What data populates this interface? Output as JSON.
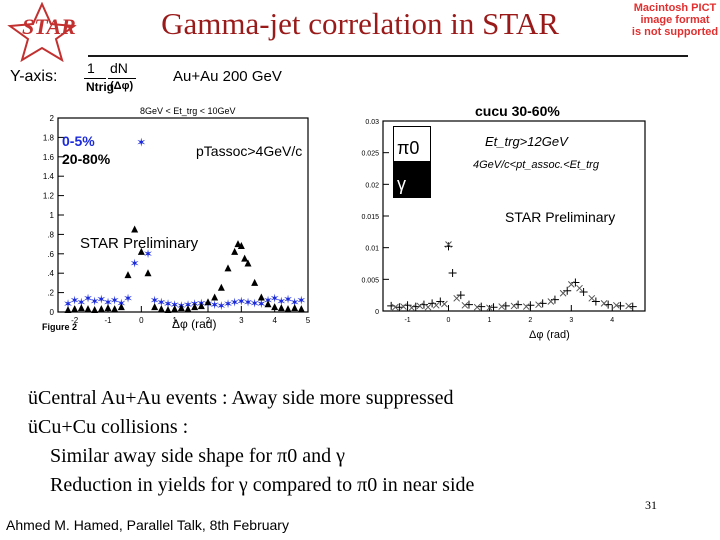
{
  "slide": {
    "title": "Gamma-jet correlation in STAR",
    "logo_text": "STAR",
    "mac_notice": [
      "Macintosh PICT",
      "image format",
      "is not supported"
    ],
    "yaxis_label": "Y-axis:",
    "yaxis_frac_num": "1",
    "yaxis_frac_den": "Ntrig",
    "yaxis_dn": "dN",
    "yaxis_dphi": "(Δφ)",
    "system_label": "Au+Au 200 GeV",
    "bullets": [
      "üCentral Au+Au events : Away side more suppressed",
      "üCu+Cu collisions :",
      "Similar away side shape for π0 and γ",
      "Reduction in yields for γ compared to π0 in near side"
    ],
    "footer": "Ahmed M. Hamed, Parallel Talk, 8th February",
    "page_number": "31"
  },
  "chart_data": [
    {
      "type": "scatter",
      "panel": "left",
      "header": "8GeV < Et_trg < 10GeV",
      "legend": [
        "0-5%",
        "20-80%"
      ],
      "annotation": "pTassoc>4GeV/c",
      "watermark": "STAR Preliminary",
      "figure_label": "Figure 2",
      "xlabel": "Δφ (rad)",
      "xlim": [
        -2.5,
        5
      ],
      "ylim": [
        0,
        2
      ],
      "x_ticks": [
        "-2",
        "-1",
        "0",
        "1",
        "2",
        "3",
        "4",
        "5"
      ],
      "y_ticks": [
        "0",
        ".2",
        ".4",
        ".6",
        ".8",
        "1",
        "1.2",
        "1.4",
        "1.6",
        "1.8",
        "2"
      ],
      "series": [
        {
          "name": "0-5%",
          "color": "#1a2adc",
          "marker": "star",
          "points": [
            [
              -2.2,
              0.08
            ],
            [
              -2.0,
              0.12
            ],
            [
              -1.8,
              0.1
            ],
            [
              -1.6,
              0.14
            ],
            [
              -1.4,
              0.11
            ],
            [
              -1.2,
              0.13
            ],
            [
              -1.0,
              0.1
            ],
            [
              -0.8,
              0.12
            ],
            [
              -0.6,
              0.09
            ],
            [
              -0.4,
              0.14
            ],
            [
              -0.2,
              0.5
            ],
            [
              0.0,
              1.75
            ],
            [
              0.2,
              0.6
            ],
            [
              0.4,
              0.12
            ],
            [
              0.6,
              0.1
            ],
            [
              0.8,
              0.08
            ],
            [
              1.0,
              0.07
            ],
            [
              1.2,
              0.06
            ],
            [
              1.4,
              0.07
            ],
            [
              1.6,
              0.08
            ],
            [
              1.8,
              0.09
            ],
            [
              2.0,
              0.08
            ],
            [
              2.2,
              0.07
            ],
            [
              2.4,
              0.06
            ],
            [
              2.6,
              0.08
            ],
            [
              2.8,
              0.1
            ],
            [
              3.0,
              0.11
            ],
            [
              3.2,
              0.1
            ],
            [
              3.4,
              0.09
            ],
            [
              3.6,
              0.08
            ],
            [
              3.8,
              0.12
            ],
            [
              4.0,
              0.14
            ],
            [
              4.2,
              0.11
            ],
            [
              4.4,
              0.13
            ],
            [
              4.6,
              0.1
            ],
            [
              4.8,
              0.12
            ]
          ]
        },
        {
          "name": "20-80%",
          "color": "#000000",
          "marker": "triangle",
          "points": [
            [
              -2.2,
              0.02
            ],
            [
              -2.0,
              0.03
            ],
            [
              -1.8,
              0.04
            ],
            [
              -1.6,
              0.03
            ],
            [
              -1.4,
              0.02
            ],
            [
              -1.2,
              0.03
            ],
            [
              -1.0,
              0.04
            ],
            [
              -0.8,
              0.03
            ],
            [
              -0.6,
              0.05
            ],
            [
              -0.4,
              0.38
            ],
            [
              -0.2,
              0.85
            ],
            [
              0.0,
              0.62
            ],
            [
              0.2,
              0.4
            ],
            [
              0.4,
              0.05
            ],
            [
              0.6,
              0.03
            ],
            [
              0.8,
              0.02
            ],
            [
              1.0,
              0.03
            ],
            [
              1.2,
              0.04
            ],
            [
              1.4,
              0.03
            ],
            [
              1.6,
              0.05
            ],
            [
              1.8,
              0.06
            ],
            [
              2.0,
              0.1
            ],
            [
              2.2,
              0.15
            ],
            [
              2.4,
              0.25
            ],
            [
              2.6,
              0.45
            ],
            [
              2.8,
              0.62
            ],
            [
              2.9,
              0.7
            ],
            [
              3.0,
              0.68
            ],
            [
              3.1,
              0.55
            ],
            [
              3.2,
              0.5
            ],
            [
              3.4,
              0.3
            ],
            [
              3.6,
              0.15
            ],
            [
              3.8,
              0.08
            ],
            [
              4.0,
              0.05
            ],
            [
              4.2,
              0.04
            ],
            [
              4.4,
              0.03
            ],
            [
              4.6,
              0.04
            ],
            [
              4.8,
              0.03
            ]
          ]
        }
      ]
    },
    {
      "type": "scatter",
      "panel": "right",
      "header": "cucu 30-60%",
      "legend": [
        "π0",
        "γ"
      ],
      "annotation_1": "Et_trg>12GeV",
      "annotation_2": "4GeV/c<pt_assoc.<Et_trg",
      "watermark": "STAR Preliminary",
      "xlabel": "Δφ (rad)",
      "xlim": [
        -1.6,
        4.8
      ],
      "ylim": [
        0,
        0.03
      ],
      "x_ticks": [
        "-1",
        "0",
        "1",
        "2",
        "3",
        "4"
      ],
      "y_ticks": [
        "0",
        "0.005",
        "0.01",
        "0.015",
        "0.02",
        "0.025",
        "0.03"
      ],
      "series": [
        {
          "name": "π0",
          "color": "#000000",
          "marker": "cross",
          "points": [
            [
              -1.4,
              0.0008
            ],
            [
              -1.2,
              0.0006
            ],
            [
              -1.0,
              0.0009
            ],
            [
              -0.8,
              0.0007
            ],
            [
              -0.6,
              0.001
            ],
            [
              -0.4,
              0.0012
            ],
            [
              -0.2,
              0.0015
            ],
            [
              0.0,
              0.0102
            ],
            [
              0.1,
              0.006
            ],
            [
              0.3,
              0.0025
            ],
            [
              0.5,
              0.001
            ],
            [
              0.8,
              0.0007
            ],
            [
              1.1,
              0.0006
            ],
            [
              1.4,
              0.0008
            ],
            [
              1.7,
              0.001
            ],
            [
              2.0,
              0.0009
            ],
            [
              2.3,
              0.0012
            ],
            [
              2.6,
              0.0018
            ],
            [
              2.9,
              0.0032
            ],
            [
              3.1,
              0.0045
            ],
            [
              3.3,
              0.003
            ],
            [
              3.6,
              0.0015
            ],
            [
              3.9,
              0.001
            ],
            [
              4.2,
              0.0008
            ],
            [
              4.5,
              0.0007
            ]
          ]
        },
        {
          "name": "γ",
          "color": "#555555",
          "marker": "x",
          "points": [
            [
              -1.3,
              0.0006
            ],
            [
              -1.1,
              0.0007
            ],
            [
              -0.9,
              0.0005
            ],
            [
              -0.7,
              0.0008
            ],
            [
              -0.5,
              0.0006
            ],
            [
              -0.3,
              0.0009
            ],
            [
              -0.1,
              0.0011
            ],
            [
              0.0,
              0.0105
            ],
            [
              0.2,
              0.002
            ],
            [
              0.4,
              0.0009
            ],
            [
              0.7,
              0.0006
            ],
            [
              1.0,
              0.0005
            ],
            [
              1.3,
              0.0007
            ],
            [
              1.6,
              0.0008
            ],
            [
              1.9,
              0.0007
            ],
            [
              2.2,
              0.001
            ],
            [
              2.5,
              0.0015
            ],
            [
              2.8,
              0.0028
            ],
            [
              3.0,
              0.0042
            ],
            [
              3.2,
              0.0036
            ],
            [
              3.5,
              0.002
            ],
            [
              3.8,
              0.0012
            ],
            [
              4.1,
              0.0009
            ],
            [
              4.4,
              0.0008
            ]
          ]
        }
      ]
    }
  ]
}
